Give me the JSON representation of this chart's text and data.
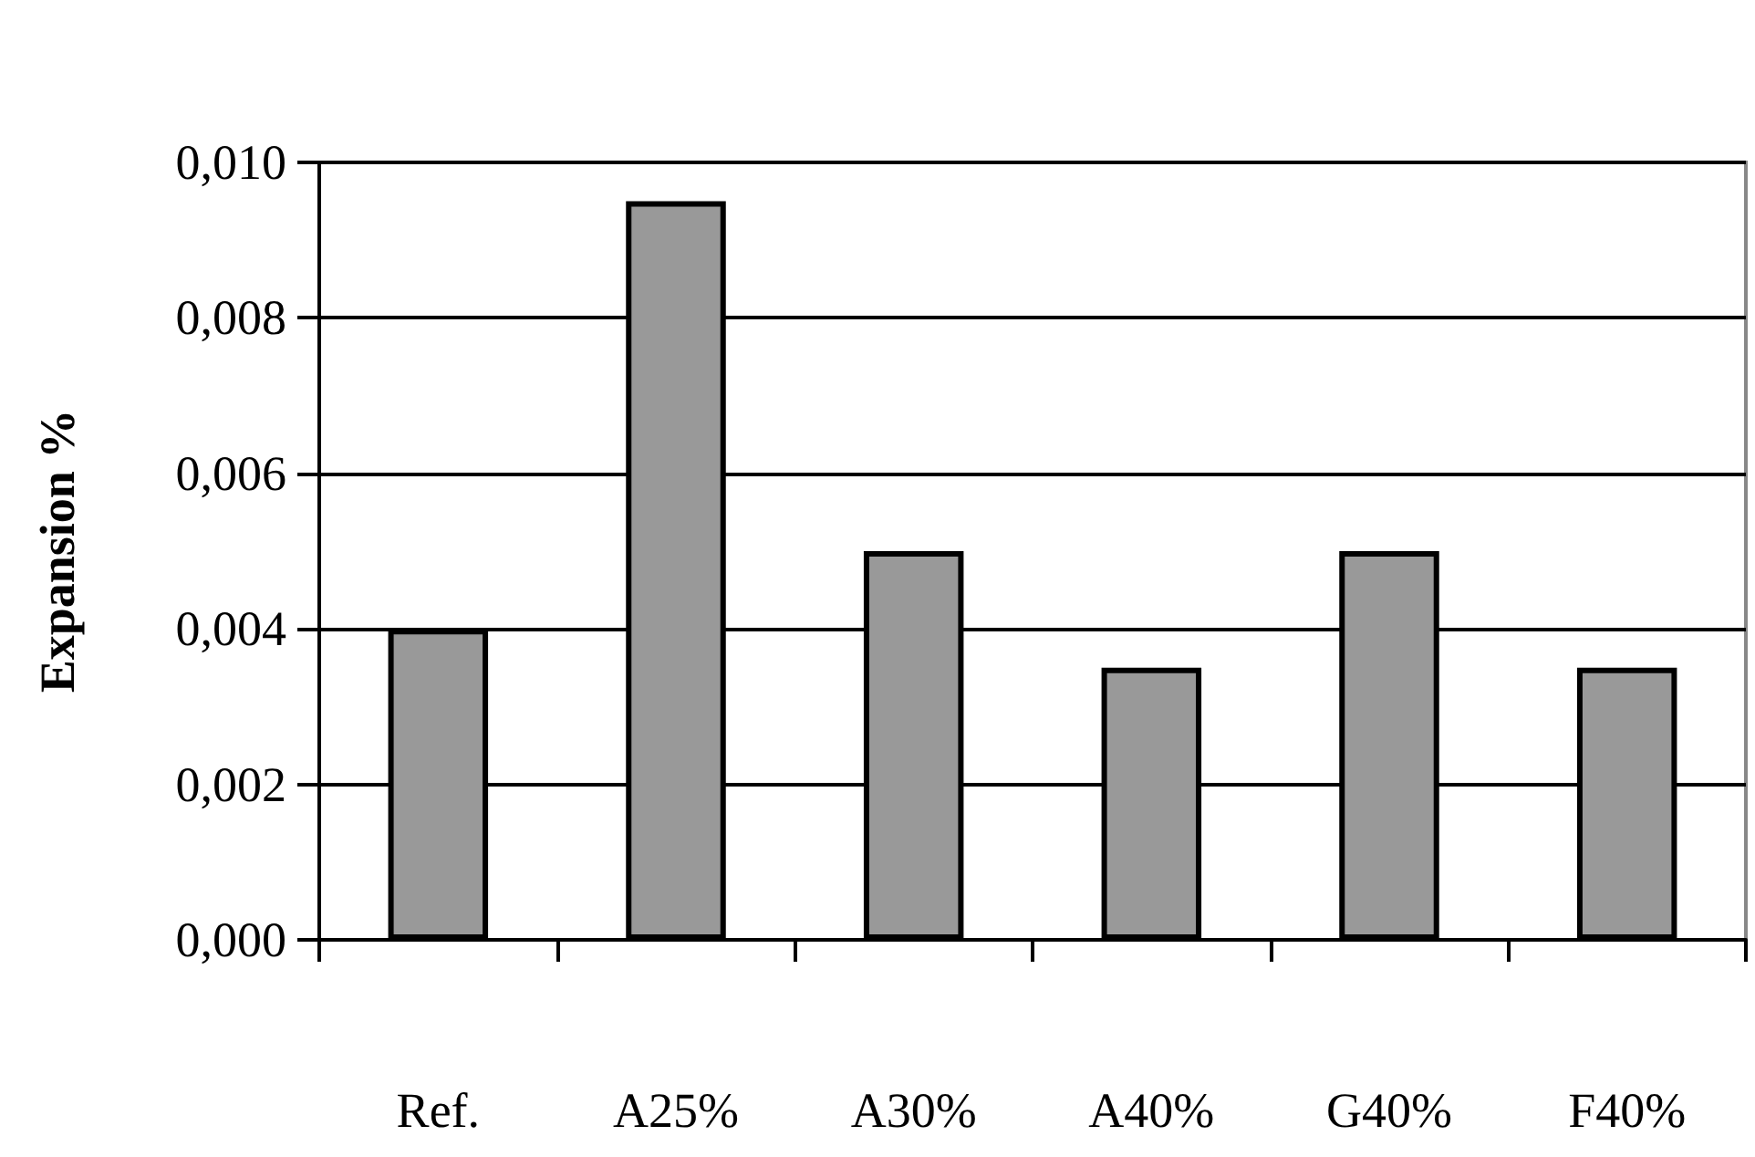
{
  "chart_data": {
    "type": "bar",
    "ylabel": "Expansion %",
    "categories": [
      "Ref.",
      "A25%",
      "A30%",
      "A40%",
      "G40%",
      "F40%"
    ],
    "values": [
      0.004,
      0.0095,
      0.005,
      0.0035,
      0.005,
      0.0035
    ],
    "color": "#999999",
    "ylim": [
      0,
      0.01
    ],
    "yticks": [
      {
        "value": 0,
        "label": "0,000"
      },
      {
        "value": 0.002,
        "label": "0,002"
      },
      {
        "value": 0.004,
        "label": "0,004"
      },
      {
        "value": 0.006,
        "label": "0,006"
      },
      {
        "value": 0.008,
        "label": "0,008"
      },
      {
        "value": 0.01,
        "label": "0,010"
      }
    ],
    "grid": "y"
  }
}
